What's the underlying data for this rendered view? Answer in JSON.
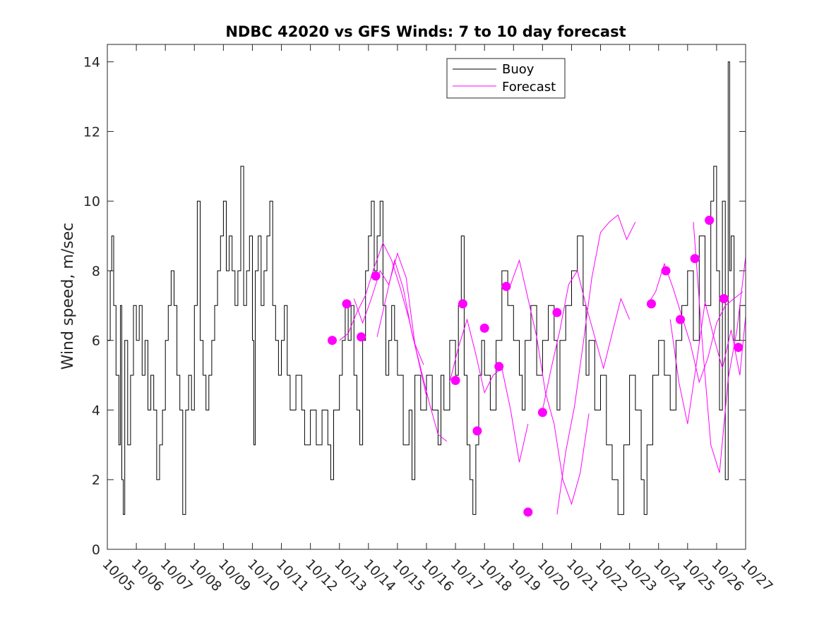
{
  "chart_data": {
    "type": "line",
    "title": "NDBC 42020 vs GFS Winds: 7 to 10 day forecast",
    "xlabel": "",
    "ylabel": "Wind speed, m/sec",
    "xlim": [
      0,
      22
    ],
    "ylim": [
      0,
      14.5
    ],
    "x_tick_labels": [
      "10/05",
      "10/06",
      "10/07",
      "10/08",
      "10/09",
      "10/10",
      "10/11",
      "10/12",
      "10/13",
      "10/14",
      "10/15",
      "10/16",
      "10/17",
      "10/18",
      "10/19",
      "10/20",
      "10/21",
      "10/22",
      "10/23",
      "10/24",
      "10/25",
      "10/26",
      "10/27"
    ],
    "y_ticks": [
      0,
      2,
      4,
      6,
      8,
      10,
      12,
      14
    ],
    "y_tick_labels": [
      "0",
      "2",
      "4",
      "6",
      "8",
      "10",
      "12",
      "14"
    ],
    "legend": {
      "position": "top-center",
      "entries": [
        {
          "label": "Buoy",
          "color": "#000000"
        },
        {
          "label": "Forecast",
          "color": "#ff00ff"
        }
      ]
    },
    "series": [
      {
        "name": "Buoy",
        "color": "#000000",
        "points": [
          [
            0.0,
            6
          ],
          [
            0.1,
            8
          ],
          [
            0.15,
            9
          ],
          [
            0.22,
            7
          ],
          [
            0.3,
            5
          ],
          [
            0.4,
            3
          ],
          [
            0.45,
            7
          ],
          [
            0.5,
            2
          ],
          [
            0.55,
            1
          ],
          [
            0.6,
            6
          ],
          [
            0.7,
            3
          ],
          [
            0.8,
            5
          ],
          [
            0.9,
            7
          ],
          [
            1.0,
            6
          ],
          [
            1.1,
            7
          ],
          [
            1.2,
            5
          ],
          [
            1.3,
            6
          ],
          [
            1.4,
            4
          ],
          [
            1.5,
            5
          ],
          [
            1.6,
            4
          ],
          [
            1.7,
            2
          ],
          [
            1.8,
            3
          ],
          [
            1.9,
            4
          ],
          [
            2.0,
            6
          ],
          [
            2.1,
            7
          ],
          [
            2.2,
            8
          ],
          [
            2.3,
            7
          ],
          [
            2.4,
            5
          ],
          [
            2.5,
            4
          ],
          [
            2.6,
            1
          ],
          [
            2.7,
            4
          ],
          [
            2.8,
            5
          ],
          [
            2.9,
            4
          ],
          [
            3.0,
            7
          ],
          [
            3.1,
            10
          ],
          [
            3.2,
            6
          ],
          [
            3.3,
            5
          ],
          [
            3.4,
            4
          ],
          [
            3.5,
            5
          ],
          [
            3.6,
            6
          ],
          [
            3.7,
            7
          ],
          [
            3.8,
            8
          ],
          [
            3.9,
            9
          ],
          [
            4.0,
            10
          ],
          [
            4.1,
            8
          ],
          [
            4.2,
            9
          ],
          [
            4.3,
            8
          ],
          [
            4.4,
            7
          ],
          [
            4.5,
            8
          ],
          [
            4.6,
            11
          ],
          [
            4.7,
            7
          ],
          [
            4.8,
            8
          ],
          [
            4.9,
            9
          ],
          [
            5.0,
            6
          ],
          [
            5.05,
            3
          ],
          [
            5.1,
            8
          ],
          [
            5.2,
            9
          ],
          [
            5.3,
            7
          ],
          [
            5.4,
            8
          ],
          [
            5.5,
            9
          ],
          [
            5.6,
            10
          ],
          [
            5.7,
            7
          ],
          [
            5.8,
            6
          ],
          [
            5.9,
            5
          ],
          [
            6.0,
            6
          ],
          [
            6.1,
            7
          ],
          [
            6.2,
            5
          ],
          [
            6.3,
            4
          ],
          [
            6.5,
            5
          ],
          [
            6.7,
            4
          ],
          [
            6.8,
            3
          ],
          [
            7.0,
            4
          ],
          [
            7.2,
            3
          ],
          [
            7.4,
            4
          ],
          [
            7.6,
            3
          ],
          [
            7.7,
            2
          ],
          [
            7.8,
            4
          ],
          [
            8.0,
            5
          ],
          [
            8.1,
            6
          ],
          [
            8.2,
            7
          ],
          [
            8.3,
            6
          ],
          [
            8.4,
            7
          ],
          [
            8.5,
            5
          ],
          [
            8.6,
            4
          ],
          [
            8.7,
            3
          ],
          [
            8.8,
            6
          ],
          [
            8.9,
            8
          ],
          [
            9.0,
            9
          ],
          [
            9.1,
            10
          ],
          [
            9.2,
            8
          ],
          [
            9.3,
            9
          ],
          [
            9.4,
            10
          ],
          [
            9.5,
            7
          ],
          [
            9.6,
            5
          ],
          [
            9.7,
            6
          ],
          [
            9.8,
            7
          ],
          [
            9.9,
            6
          ],
          [
            10.0,
            5
          ],
          [
            10.2,
            3
          ],
          [
            10.4,
            4
          ],
          [
            10.5,
            2
          ],
          [
            10.6,
            5
          ],
          [
            10.8,
            4
          ],
          [
            11.0,
            5
          ],
          [
            11.2,
            4
          ],
          [
            11.4,
            3
          ],
          [
            11.5,
            5
          ],
          [
            11.6,
            4
          ],
          [
            11.8,
            6
          ],
          [
            12.0,
            5
          ],
          [
            12.1,
            7
          ],
          [
            12.2,
            9
          ],
          [
            12.3,
            5
          ],
          [
            12.4,
            3
          ],
          [
            12.5,
            2
          ],
          [
            12.6,
            1
          ],
          [
            12.7,
            3
          ],
          [
            12.8,
            5
          ],
          [
            12.9,
            6
          ],
          [
            13.0,
            5
          ],
          [
            13.2,
            4
          ],
          [
            13.4,
            6
          ],
          [
            13.6,
            8
          ],
          [
            13.8,
            7
          ],
          [
            14.0,
            6
          ],
          [
            14.2,
            5
          ],
          [
            14.3,
            4
          ],
          [
            14.4,
            6
          ],
          [
            14.6,
            7
          ],
          [
            14.8,
            5
          ],
          [
            15.0,
            6
          ],
          [
            15.2,
            7
          ],
          [
            15.4,
            6
          ],
          [
            15.5,
            4
          ],
          [
            15.6,
            6
          ],
          [
            15.8,
            7
          ],
          [
            16.0,
            8
          ],
          [
            16.2,
            9
          ],
          [
            16.4,
            7
          ],
          [
            16.5,
            5
          ],
          [
            16.6,
            6
          ],
          [
            16.8,
            4
          ],
          [
            17.0,
            5
          ],
          [
            17.2,
            3
          ],
          [
            17.4,
            2
          ],
          [
            17.6,
            1
          ],
          [
            17.8,
            3
          ],
          [
            18.0,
            5
          ],
          [
            18.2,
            4
          ],
          [
            18.4,
            2
          ],
          [
            18.5,
            1
          ],
          [
            18.6,
            3
          ],
          [
            18.8,
            5
          ],
          [
            19.0,
            6
          ],
          [
            19.2,
            5
          ],
          [
            19.4,
            4
          ],
          [
            19.6,
            6
          ],
          [
            19.8,
            7
          ],
          [
            20.0,
            8
          ],
          [
            20.2,
            6
          ],
          [
            20.4,
            9
          ],
          [
            20.6,
            7
          ],
          [
            20.8,
            10
          ],
          [
            20.9,
            11
          ],
          [
            21.0,
            8
          ],
          [
            21.1,
            4
          ],
          [
            21.2,
            10
          ],
          [
            21.3,
            2
          ],
          [
            21.4,
            14
          ],
          [
            21.45,
            8
          ],
          [
            21.5,
            9
          ],
          [
            21.6,
            6
          ],
          [
            21.8,
            7
          ],
          [
            22.0,
            6
          ]
        ]
      },
      {
        "name": "Forecast",
        "color": "#ff00ff",
        "lines": [
          [
            [
              8.0,
              6.0
            ],
            [
              8.3,
              6.2
            ],
            [
              8.6,
              6.8
            ],
            [
              8.9,
              7.3
            ],
            [
              9.2,
              8.1
            ],
            [
              9.5,
              8.8
            ],
            [
              9.8,
              8.3
            ],
            [
              10.1,
              7.5
            ],
            [
              10.4,
              6.6
            ],
            [
              10.7,
              5.5
            ],
            [
              11.0,
              4.4
            ]
          ],
          [
            [
              8.5,
              7.2
            ],
            [
              8.8,
              6.5
            ],
            [
              9.1,
              7.2
            ],
            [
              9.4,
              8.0
            ],
            [
              9.7,
              7.6
            ],
            [
              10.0,
              8.5
            ],
            [
              10.3,
              7.8
            ],
            [
              10.6,
              5.9
            ],
            [
              10.9,
              5.3
            ]
          ],
          [
            [
              9.3,
              6.1
            ],
            [
              9.6,
              7.2
            ],
            [
              9.9,
              8.3
            ],
            [
              10.2,
              7.5
            ],
            [
              10.5,
              6.2
            ],
            [
              10.8,
              5.2
            ],
            [
              11.1,
              4.2
            ],
            [
              11.4,
              3.3
            ],
            [
              11.7,
              3.1
            ]
          ],
          [
            [
              11.8,
              4.8
            ],
            [
              12.1,
              5.8
            ],
            [
              12.4,
              6.6
            ],
            [
              12.7,
              5.6
            ],
            [
              13.0,
              4.5
            ],
            [
              13.3,
              5.0
            ],
            [
              13.6,
              5.2
            ],
            [
              13.9,
              4.0
            ],
            [
              14.2,
              2.5
            ],
            [
              14.5,
              3.6
            ]
          ],
          [
            [
              13.9,
              7.6
            ],
            [
              14.2,
              8.3
            ],
            [
              14.5,
              7.2
            ],
            [
              14.8,
              6.1
            ],
            [
              15.1,
              4.5
            ],
            [
              15.4,
              3.6
            ],
            [
              15.7,
              2.0
            ],
            [
              16.0,
              1.3
            ],
            [
              16.3,
              2.2
            ],
            [
              16.6,
              3.9
            ]
          ],
          [
            [
              15.5,
              1.0
            ],
            [
              15.8,
              2.8
            ],
            [
              16.1,
              4.1
            ],
            [
              16.4,
              5.9
            ],
            [
              16.7,
              7.8
            ],
            [
              17.0,
              9.1
            ],
            [
              17.3,
              9.4
            ],
            [
              17.6,
              9.6
            ],
            [
              17.9,
              8.9
            ],
            [
              18.2,
              9.4
            ]
          ],
          [
            [
              15.0,
              4.0
            ],
            [
              15.3,
              5.2
            ],
            [
              15.6,
              6.3
            ],
            [
              15.9,
              7.6
            ],
            [
              16.2,
              8.0
            ],
            [
              16.5,
              7.0
            ],
            [
              16.8,
              6.1
            ],
            [
              17.1,
              5.2
            ],
            [
              17.4,
              6.2
            ],
            [
              17.7,
              7.2
            ],
            [
              18.0,
              6.6
            ]
          ],
          [
            [
              18.6,
              7.0
            ],
            [
              18.9,
              7.4
            ],
            [
              19.2,
              8.2
            ],
            [
              19.5,
              7.5
            ],
            [
              19.8,
              6.7
            ],
            [
              20.1,
              5.9
            ],
            [
              20.4,
              4.8
            ],
            [
              20.7,
              5.5
            ],
            [
              21.0,
              6.5
            ],
            [
              21.3,
              7.0
            ],
            [
              21.6,
              7.2
            ],
            [
              21.9,
              7.4
            ]
          ],
          [
            [
              19.4,
              6.6
            ],
            [
              19.7,
              4.8
            ],
            [
              20.0,
              3.6
            ],
            [
              20.3,
              5.3
            ],
            [
              20.6,
              7.1
            ],
            [
              20.9,
              6.1
            ],
            [
              21.2,
              5.2
            ],
            [
              21.5,
              6.3
            ],
            [
              21.8,
              5.0
            ],
            [
              22.0,
              6.7
            ]
          ],
          [
            [
              20.2,
              9.4
            ],
            [
              20.5,
              6.0
            ],
            [
              20.8,
              3.0
            ],
            [
              21.1,
              2.2
            ],
            [
              21.4,
              4.9
            ],
            [
              21.7,
              6.3
            ],
            [
              22.0,
              8.4
            ]
          ]
        ],
        "markers": [
          [
            7.75,
            6.0
          ],
          [
            8.25,
            7.05
          ],
          [
            8.75,
            6.1
          ],
          [
            9.25,
            7.85
          ],
          [
            12.0,
            4.85
          ],
          [
            12.25,
            7.05
          ],
          [
            12.75,
            3.4
          ],
          [
            13.0,
            6.35
          ],
          [
            13.5,
            5.25
          ],
          [
            13.75,
            7.55
          ],
          [
            14.5,
            1.07
          ],
          [
            15.0,
            3.93
          ],
          [
            15.5,
            6.8
          ],
          [
            18.75,
            7.05
          ],
          [
            19.25,
            8.0
          ],
          [
            19.75,
            6.6
          ],
          [
            20.25,
            8.35
          ],
          [
            20.75,
            9.45
          ],
          [
            21.25,
            7.2
          ],
          [
            21.75,
            5.8
          ]
        ]
      }
    ]
  }
}
